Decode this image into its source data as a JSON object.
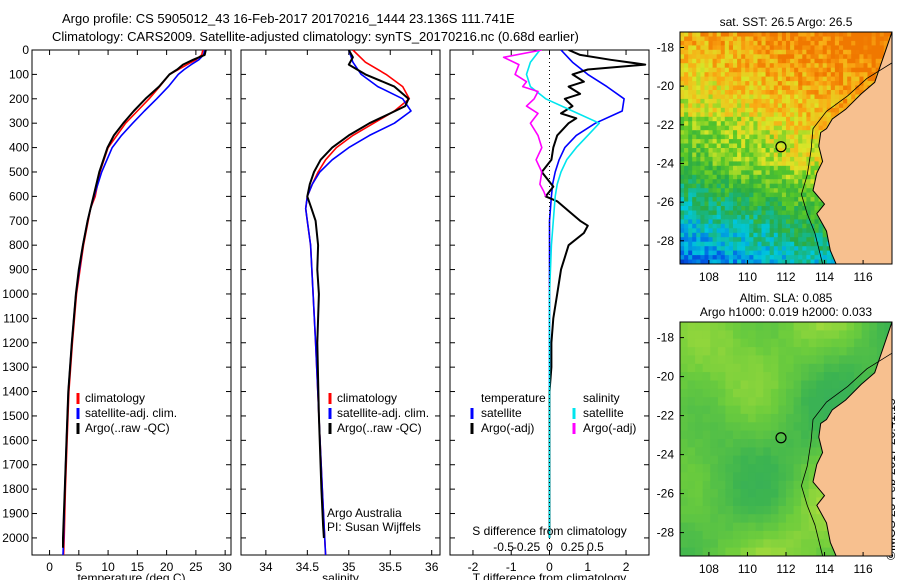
{
  "header": {
    "title_line1": "Argo profile: CS 5905012_43 16-Feb-2017 20170216_1444 23.136S 111.741E",
    "title_line2": "Climatology: CARS2009. Satellite-adjusted climatology: synTS_20170216.nc (0.68d earlier)"
  },
  "credit": "©IMOS 23-Feb-2017 20:41:15",
  "colors": {
    "climatology": "#ff0000",
    "satellite": "#0000ff",
    "argo": "#000000",
    "s_satellite": "#00e5ee",
    "s_argo": "#ff00ff",
    "land": "#f7c08f"
  },
  "chart_data": [
    {
      "id": "temperature",
      "type": "line",
      "xlabel": "temperature (deg C)",
      "ylabel": "",
      "xlim": [
        -3,
        31
      ],
      "ylim": [
        2070,
        0
      ],
      "xticks": [
        0,
        5,
        10,
        15,
        20,
        25,
        30
      ],
      "yticks": [
        0,
        100,
        200,
        300,
        400,
        500,
        600,
        700,
        800,
        900,
        1000,
        1100,
        1200,
        1300,
        1400,
        1500,
        1600,
        1700,
        1800,
        1900,
        2000
      ],
      "legend": [
        "climatology",
        "satellite-adj. clim.",
        "Argo(..raw -QC)"
      ],
      "series": [
        {
          "name": "climatology",
          "color": "#ff0000",
          "depth": [
            0,
            20,
            40,
            60,
            80,
            100,
            150,
            200,
            250,
            300,
            350,
            400,
            500,
            600,
            650,
            700,
            800,
            900,
            1000,
            1200,
            1400,
            1600,
            1800,
            2000,
            2070
          ],
          "values": [
            26.2,
            26,
            25,
            23.5,
            22,
            20.5,
            18.8,
            17,
            15,
            13,
            11.5,
            10,
            8.6,
            7.8,
            7,
            6.6,
            5.8,
            5.2,
            4.6,
            3.9,
            3.3,
            3,
            2.7,
            2.5,
            2.4
          ]
        },
        {
          "name": "satellite-adj. clim.",
          "color": "#0000ff",
          "depth": [
            0,
            20,
            40,
            60,
            80,
            100,
            150,
            200,
            250,
            300,
            350,
            400,
            500,
            600,
            650,
            700,
            800,
            900,
            1000,
            1200,
            1400,
            1600,
            1800,
            2000,
            2070
          ],
          "values": [
            26.5,
            26.3,
            25.5,
            24.2,
            23,
            22,
            20.3,
            18.3,
            16.2,
            14.2,
            12.3,
            10.7,
            8.9,
            7.6,
            7,
            6.5,
            5.7,
            5.1,
            4.5,
            3.8,
            3.2,
            2.9,
            2.6,
            2.4,
            2.3
          ]
        },
        {
          "name": "Argo(..raw -QC)",
          "color": "#000000",
          "depth": [
            0,
            20,
            40,
            60,
            80,
            100,
            150,
            200,
            250,
            300,
            350,
            400,
            500,
            600,
            650,
            700,
            800,
            900,
            1000,
            1200,
            1400,
            1600,
            1800,
            2000,
            2040
          ],
          "values": [
            26.7,
            26.5,
            24.5,
            22.8,
            21.8,
            20.5,
            18.7,
            16.4,
            14.4,
            12.6,
            11,
            9.9,
            8.5,
            7.5,
            7,
            6.5,
            5.7,
            5,
            4.5,
            3.8,
            3.2,
            2.9,
            2.6,
            2.3,
            2.3
          ]
        }
      ]
    },
    {
      "id": "salinity",
      "type": "line",
      "xlabel": "salinity",
      "ylabel": "",
      "xlim": [
        33.7,
        36.1
      ],
      "ylim": [
        2070,
        0
      ],
      "xticks": [
        34,
        34.5,
        35,
        35.5,
        36
      ],
      "legend": [
        "climatology",
        "satellite-adj. clim.",
        "Argo(..raw -QC)"
      ],
      "annotations": [
        "Argo Australia",
        "PI: Susan Wijffels"
      ],
      "series": [
        {
          "name": "climatology",
          "color": "#ff0000",
          "depth": [
            0,
            50,
            100,
            150,
            200,
            250,
            300,
            350,
            400,
            450,
            500,
            550,
            600,
            650,
            700,
            800,
            1000,
            1200,
            1500,
            1800,
            2000,
            2070
          ],
          "values": [
            35.05,
            35.2,
            35.45,
            35.65,
            35.73,
            35.55,
            35.3,
            35.05,
            34.85,
            34.72,
            34.63,
            34.56,
            34.5,
            34.48,
            34.5,
            34.54,
            34.57,
            34.6,
            34.64,
            34.68,
            34.71,
            34.72
          ]
        },
        {
          "name": "satellite-adj. clim.",
          "color": "#0000ff",
          "depth": [
            0,
            50,
            100,
            150,
            200,
            250,
            300,
            350,
            400,
            450,
            500,
            550,
            600,
            650,
            700,
            800,
            1000,
            1200,
            1500,
            1800,
            2000,
            2070
          ],
          "values": [
            35.0,
            35.05,
            35.15,
            35.35,
            35.65,
            35.75,
            35.55,
            35.25,
            35.0,
            34.8,
            34.65,
            34.56,
            34.5,
            34.48,
            34.5,
            34.54,
            34.57,
            34.6,
            34.64,
            34.68,
            34.71,
            34.72
          ]
        },
        {
          "name": "Argo(..raw -QC)",
          "color": "#000000",
          "depth": [
            0,
            30,
            60,
            100,
            150,
            200,
            230,
            260,
            300,
            350,
            400,
            450,
            500,
            550,
            600,
            650,
            700,
            800,
            900,
            1000,
            1100,
            1200,
            1500,
            1800,
            1950,
            2000
          ],
          "values": [
            35.0,
            35.05,
            35.0,
            35.2,
            35.55,
            35.72,
            35.68,
            35.5,
            35.25,
            35.0,
            34.8,
            34.66,
            34.58,
            34.53,
            34.5,
            34.55,
            34.6,
            34.63,
            34.62,
            34.64,
            34.63,
            34.62,
            34.64,
            34.67,
            34.69,
            34.7
          ]
        }
      ]
    },
    {
      "id": "difference",
      "type": "line",
      "xlabel": "T difference from climatology",
      "x2label": "S difference from climatology",
      "xlim": [
        -2.6,
        2.6
      ],
      "ylim": [
        2070,
        0
      ],
      "xticks": [
        -2,
        -1,
        0,
        1,
        2
      ],
      "x2ticks": [
        "-0.5",
        "-0.25",
        "0",
        "0.25",
        "0.5"
      ],
      "legend_temperature": {
        "header": "temperature",
        "items": [
          "satellite",
          "Argo(-adj)"
        ]
      },
      "legend_salinity": {
        "header": "salinity",
        "items": [
          "satellite",
          "Argo(-adj)"
        ]
      },
      "series": [
        {
          "name": "temperature satellite",
          "color": "#0000ff",
          "depth": [
            0,
            50,
            100,
            150,
            200,
            250,
            300,
            350,
            400,
            450,
            500,
            550,
            600,
            700,
            800,
            1000,
            1500,
            2000
          ],
          "values": [
            0.3,
            0.6,
            1.0,
            1.5,
            1.95,
            1.9,
            1.2,
            0.7,
            0.4,
            0.25,
            0.15,
            0.08,
            0.05,
            0.0,
            0.0,
            0.0,
            0.0,
            0.0
          ]
        },
        {
          "name": "temperature Argo(-adj)",
          "color": "#000000",
          "depth": [
            0,
            20,
            40,
            60,
            80,
            100,
            130,
            150,
            180,
            200,
            230,
            260,
            280,
            300,
            350,
            400,
            450,
            500,
            560,
            600,
            620,
            660,
            700,
            720,
            750,
            800,
            850,
            900,
            950,
            1000,
            1100,
            1200,
            1300,
            1400,
            1500,
            1600,
            1700,
            1800,
            1900,
            2000
          ],
          "values": [
            0.5,
            0.8,
            1.6,
            2.5,
            1.0,
            0.6,
            0.9,
            0.5,
            0.8,
            0.4,
            0.6,
            0.3,
            0.7,
            0.5,
            0.2,
            0.1,
            0.05,
            -0.2,
            0.1,
            -0.1,
            0.2,
            0.5,
            0.8,
            1.0,
            0.9,
            0.5,
            0.4,
            0.3,
            0.25,
            0.2,
            0.1,
            0.05,
            0.05,
            0.0,
            0.0,
            0.0,
            0.0,
            0.0,
            0.0,
            0.0
          ]
        },
        {
          "name": "salinity satellite",
          "color": "#00e5ee",
          "depth": [
            0,
            50,
            100,
            150,
            200,
            250,
            300,
            350,
            400,
            450,
            500,
            550,
            600,
            700,
            800,
            1000,
            1500,
            2000
          ],
          "values": [
            -0.25,
            -0.5,
            -0.6,
            -0.5,
            -0.1,
            0.6,
            1.3,
            1.0,
            0.7,
            0.45,
            0.3,
            0.2,
            0.15,
            0.1,
            0.05,
            0.0,
            0.0,
            0.0
          ]
        },
        {
          "name": "salinity Argo(-adj)",
          "color": "#ff00ff",
          "depth": [
            0,
            30,
            60,
            100,
            130,
            150,
            170,
            200,
            230,
            260,
            300,
            350,
            400,
            450,
            500,
            550,
            580,
            600
          ],
          "values": [
            -0.2,
            -1.2,
            -0.8,
            -0.9,
            -0.6,
            -0.7,
            -0.3,
            -0.4,
            -0.6,
            -0.3,
            -0.5,
            -0.3,
            -0.2,
            -0.35,
            -0.2,
            -0.25,
            -0.15,
            -0.1
          ]
        }
      ]
    },
    {
      "id": "sst_map",
      "type": "heatmap",
      "title": "sat. SST: 26.5 Argo: 26.5",
      "xlim": [
        106.5,
        117.5
      ],
      "ylim": [
        -29.2,
        -17.2
      ],
      "xticks": [
        108,
        110,
        112,
        114,
        116
      ],
      "yticks": [
        -18,
        -20,
        -22,
        -24,
        -26,
        -28
      ],
      "argo_position": {
        "lon": 111.741,
        "lat": -23.136
      }
    },
    {
      "id": "sla_map",
      "type": "heatmap",
      "title_line1": "Altim. SLA: 0.085",
      "title_line2": "Argo h1000: 0.019 h2000: 0.033",
      "xlim": [
        106.5,
        117.5
      ],
      "ylim": [
        -29.2,
        -17.2
      ],
      "xticks": [
        108,
        110,
        112,
        114,
        116
      ],
      "yticks": [
        -18,
        -20,
        -22,
        -24,
        -26,
        -28
      ],
      "argo_position": {
        "lon": 111.741,
        "lat": -23.136
      }
    }
  ]
}
